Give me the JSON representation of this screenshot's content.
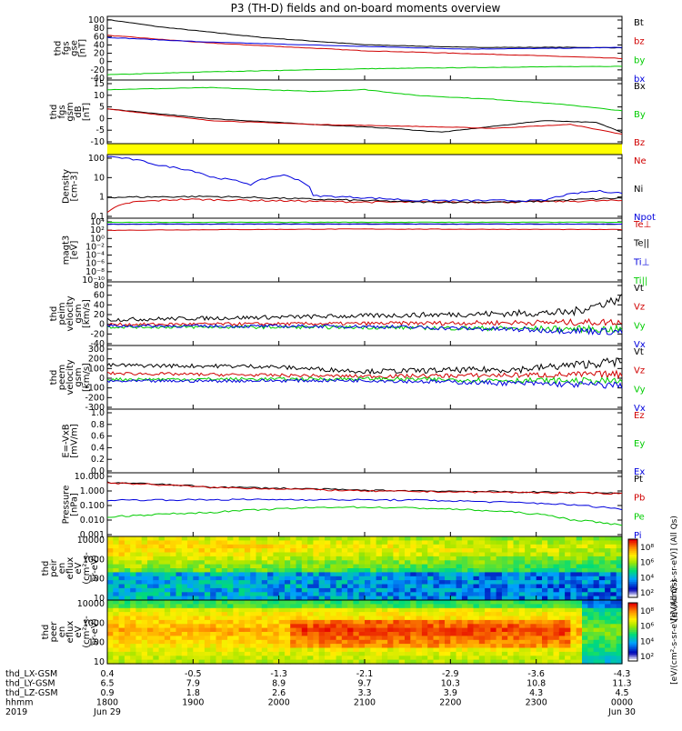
{
  "title": "P3 (TH-D) fields and on-board moments overview",
  "colors": {
    "black": "#000000",
    "red": "#d00000",
    "green": "#00cc00",
    "blue": "#0000dd",
    "yellow": "#ffff00"
  },
  "chart_data": [
    {
      "type": "line",
      "ylabel_lines": [
        "thd",
        "fgs",
        "gse",
        "[nT]"
      ],
      "yticks": [
        "100",
        "80",
        "60",
        "40",
        "20",
        "0",
        "-20",
        "-40"
      ],
      "ylim": [
        -40,
        100
      ],
      "series": [
        {
          "name": "Bt",
          "color": "#000000",
          "anchors": [
            [
              0,
              97
            ],
            [
              0.1,
              80
            ],
            [
              0.3,
              55
            ],
            [
              0.5,
              38
            ],
            [
              0.7,
              32
            ],
            [
              0.9,
              32
            ],
            [
              1,
              31
            ]
          ]
        },
        {
          "name": "bz",
          "color": "#d00000",
          "anchors": [
            [
              0,
              60
            ],
            [
              0.2,
              42
            ],
            [
              0.5,
              24
            ],
            [
              0.8,
              14
            ],
            [
              1,
              6
            ]
          ]
        },
        {
          "name": "by",
          "color": "#00cc00",
          "anchors": [
            [
              0,
              -32
            ],
            [
              0.2,
              -25
            ],
            [
              0.5,
              -18
            ],
            [
              0.8,
              -14
            ],
            [
              1,
              -12
            ]
          ]
        },
        {
          "name": "bx",
          "color": "#0000dd",
          "anchors": [
            [
              0,
              55
            ],
            [
              0.2,
              44
            ],
            [
              0.5,
              34
            ],
            [
              0.7,
              28
            ],
            [
              0.9,
              30
            ],
            [
              1,
              32
            ]
          ]
        }
      ]
    },
    {
      "type": "line",
      "ylabel_lines": [
        "thd",
        "fgs",
        "gsm",
        "dB",
        "[nT]"
      ],
      "yticks": [
        "15",
        "10",
        "5",
        "0",
        "-5",
        "-10"
      ],
      "ylim": [
        -14,
        17
      ],
      "series": [
        {
          "name": "Bx",
          "color": "#000000",
          "anchors": [
            [
              0,
              3
            ],
            [
              0.2,
              -2
            ],
            [
              0.4,
              -5
            ],
            [
              0.55,
              -7
            ],
            [
              0.65,
              -9
            ],
            [
              0.75,
              -6
            ],
            [
              0.85,
              -3
            ],
            [
              0.95,
              -4
            ],
            [
              1,
              -9
            ]
          ]
        },
        {
          "name": "By",
          "color": "#00cc00",
          "anchors": [
            [
              0,
              13
            ],
            [
              0.2,
              14
            ],
            [
              0.4,
              12
            ],
            [
              0.5,
              13
            ],
            [
              0.6,
              10
            ],
            [
              0.75,
              8
            ],
            [
              0.9,
              5
            ],
            [
              1,
              2
            ]
          ]
        },
        {
          "name": "Bz",
          "color": "#d00000",
          "anchors": [
            [
              0,
              3
            ],
            [
              0.2,
              -3
            ],
            [
              0.4,
              -5
            ],
            [
              0.6,
              -6
            ],
            [
              0.75,
              -7
            ],
            [
              0.9,
              -5
            ],
            [
              1,
              -10
            ]
          ]
        }
      ]
    },
    {
      "type": "line",
      "log": true,
      "ylabel_lines": [
        "Density",
        "[cm-3]"
      ],
      "yticks": [
        "100",
        "10",
        "1",
        "0.1"
      ],
      "ylim": [
        0.05,
        300
      ],
      "series": [
        {
          "name": "Ne",
          "color": "#d00000",
          "anchors": [
            [
              0,
              0.08
            ],
            [
              0.05,
              0.4
            ],
            [
              0.15,
              0.6
            ],
            [
              0.3,
              0.5
            ],
            [
              0.5,
              0.4
            ],
            [
              0.8,
              0.4
            ],
            [
              1,
              0.5
            ]
          ]
        },
        {
          "name": "Ni",
          "color": "#000000",
          "anchors": [
            [
              0,
              0.8
            ],
            [
              0.2,
              0.9
            ],
            [
              0.4,
              0.6
            ],
            [
              0.6,
              0.4
            ],
            [
              0.8,
              0.4
            ],
            [
              1,
              0.7
            ]
          ]
        },
        {
          "name": "Npot",
          "color": "#0000dd",
          "anchors": [
            [
              0,
              300
            ],
            [
              0.1,
              80
            ],
            [
              0.2,
              15
            ],
            [
              0.28,
              5
            ],
            [
              0.34,
              20
            ],
            [
              0.4,
              1
            ],
            [
              0.6,
              0.5
            ],
            [
              0.85,
              0.5
            ],
            [
              0.95,
              2
            ],
            [
              1,
              1.5
            ]
          ]
        }
      ]
    },
    {
      "type": "line",
      "log": true,
      "ylabel_lines": [
        "magt3",
        "[eV]"
      ],
      "yticks": [
        "10⁴",
        "10²",
        "10⁰",
        "10⁻²",
        "10⁻⁴",
        "10⁻⁶",
        "10⁻⁸",
        "10⁻¹⁰"
      ],
      "ylim": [
        1e-10,
        30000
      ],
      "series": [
        {
          "name": "Te⊥",
          "color": "#d00000",
          "anchors": [
            [
              0,
              100
            ],
            [
              0.5,
              200
            ],
            [
              1,
              150
            ]
          ]
        },
        {
          "name": "Te||",
          "color": "#000000",
          "anchors": [
            [
              0,
              3000
            ],
            [
              0.5,
              3500
            ],
            [
              1,
              3000
            ]
          ]
        },
        {
          "name": "Ti⊥",
          "color": "#0000dd",
          "anchors": [
            [
              0,
              3000
            ],
            [
              0.5,
              3000
            ],
            [
              1,
              3200
            ]
          ]
        },
        {
          "name": "Ti||",
          "color": "#00cc00",
          "anchors": [
            [
              0,
              8000
            ],
            [
              0.5,
              9000
            ],
            [
              1,
              9000
            ]
          ]
        }
      ]
    },
    {
      "type": "line",
      "noisy": true,
      "ylabel_lines": [
        "thd",
        "peim",
        "velocity",
        "gsm",
        "[km/s]"
      ],
      "yticks": [
        "80",
        "60",
        "40",
        "20",
        "0",
        "-20",
        "-40"
      ],
      "ylim": [
        -40,
        85
      ],
      "series": [
        {
          "name": "Vt",
          "color": "#000000",
          "anchors": [
            [
              0,
              10
            ],
            [
              0.5,
              18
            ],
            [
              0.9,
              25
            ],
            [
              1,
              55
            ]
          ]
        },
        {
          "name": "Vz",
          "color": "#d00000",
          "anchors": [
            [
              0,
              0
            ],
            [
              0.5,
              2
            ],
            [
              1,
              5
            ]
          ]
        },
        {
          "name": "Vy",
          "color": "#00cc00",
          "anchors": [
            [
              0,
              -5
            ],
            [
              0.5,
              -6
            ],
            [
              1,
              -10
            ]
          ]
        },
        {
          "name": "Vx",
          "color": "#0000dd",
          "anchors": [
            [
              0,
              -3
            ],
            [
              0.5,
              -4
            ],
            [
              1,
              -15
            ]
          ]
        }
      ]
    },
    {
      "type": "line",
      "noisy": true,
      "ylabel_lines": [
        "thd",
        "peem",
        "velocity",
        "gsm",
        "[km/s]"
      ],
      "yticks": [
        "300",
        "200",
        "100",
        "0",
        "-100",
        "-200",
        "-300"
      ],
      "ylim": [
        -300,
        300
      ],
      "series": [
        {
          "name": "Vt",
          "color": "#000000",
          "anchors": [
            [
              0,
              120
            ],
            [
              0.3,
              110
            ],
            [
              0.5,
              60
            ],
            [
              0.8,
              80
            ],
            [
              1,
              160
            ]
          ]
        },
        {
          "name": "Vz",
          "color": "#d00000",
          "anchors": [
            [
              0,
              40
            ],
            [
              0.5,
              10
            ],
            [
              1,
              30
            ]
          ]
        },
        {
          "name": "Vy",
          "color": "#00cc00",
          "anchors": [
            [
              0,
              -20
            ],
            [
              0.5,
              -15
            ],
            [
              1,
              -40
            ]
          ]
        },
        {
          "name": "Vx",
          "color": "#0000dd",
          "anchors": [
            [
              0,
              -40
            ],
            [
              0.5,
              -30
            ],
            [
              1,
              -80
            ]
          ]
        }
      ]
    },
    {
      "type": "line",
      "ylabel_lines": [
        "E=-VxB",
        "[mV/m]"
      ],
      "yticks": [
        "1.0",
        "0.8",
        "0.6",
        "0.4",
        "0.2",
        "0.0"
      ],
      "ylim": [
        0,
        1
      ],
      "series": [
        {
          "name": "Ez",
          "color": "#d00000",
          "anchors": []
        },
        {
          "name": "Ey",
          "color": "#00cc00",
          "anchors": []
        },
        {
          "name": "Ex",
          "color": "#0000dd",
          "anchors": []
        }
      ]
    },
    {
      "type": "line",
      "log": true,
      "ylabel_lines": [
        "Pressure",
        "[nPa]"
      ],
      "yticks": [
        "10.000",
        "1.000",
        "0.100",
        "0.010",
        "0.001"
      ],
      "ylim": [
        0.001,
        10
      ],
      "series": [
        {
          "name": "Pt",
          "color": "#000000",
          "anchors": [
            [
              0,
              3
            ],
            [
              0.2,
              1.5
            ],
            [
              0.5,
              0.9
            ],
            [
              0.8,
              0.7
            ],
            [
              1,
              0.6
            ]
          ]
        },
        {
          "name": "Pb",
          "color": "#d00000",
          "anchors": [
            [
              0,
              2.8
            ],
            [
              0.2,
              1.4
            ],
            [
              0.5,
              0.8
            ],
            [
              0.8,
              0.65
            ],
            [
              1,
              0.55
            ]
          ]
        },
        {
          "name": "Pe",
          "color": "#00cc00",
          "anchors": [
            [
              0,
              0.015
            ],
            [
              0.2,
              0.03
            ],
            [
              0.45,
              0.07
            ],
            [
              0.6,
              0.06
            ],
            [
              0.8,
              0.03
            ],
            [
              0.9,
              0.01
            ],
            [
              1,
              0.004
            ]
          ]
        },
        {
          "name": "Pi",
          "color": "#0000dd",
          "anchors": [
            [
              0,
              0.2
            ],
            [
              0.3,
              0.22
            ],
            [
              0.6,
              0.2
            ],
            [
              0.85,
              0.12
            ],
            [
              1,
              0.05
            ]
          ]
        }
      ]
    },
    {
      "type": "heatmap",
      "ylabel_lines": [
        "thd",
        "peir",
        "en",
        "eflux",
        "eV",
        "(cm²-s-",
        "sr-eV)"
      ],
      "yticks": [
        "10000",
        "1000",
        "100",
        "10"
      ],
      "colorbar_label": "[eV/(cm²-s-sr-eV)] (All Qs)",
      "colorbar_ticks": [
        "10⁸",
        "10⁶",
        "10⁴",
        "10²"
      ]
    },
    {
      "type": "heatmap",
      "ylabel_lines": [
        "thd",
        "peer",
        "en",
        "eflux",
        "eV",
        "(cm²-s-",
        "sr-eV)"
      ],
      "yticks": [
        "10000",
        "1000",
        "100",
        "10"
      ],
      "colorbar_label": "[eV/(cm²-s-sr-eV)] (All Qs)",
      "colorbar_ticks": [
        "10⁸",
        "10⁶",
        "10⁴",
        "10²"
      ]
    }
  ],
  "xaxis": {
    "rows": [
      {
        "label": "thd_LX-GSM",
        "values": [
          "0.4",
          "-0.5",
          "-1.3",
          "-2.1",
          "-2.9",
          "-3.6",
          "-4.3"
        ]
      },
      {
        "label": "thd_LY-GSM",
        "values": [
          "6.5",
          "7.9",
          "8.9",
          "9.7",
          "10.3",
          "10.8",
          "11.3"
        ]
      },
      {
        "label": "thd_LZ-GSM",
        "values": [
          "0.9",
          "1.8",
          "2.6",
          "3.3",
          "3.9",
          "4.3",
          "4.5"
        ]
      },
      {
        "label": "hhmm",
        "values": [
          "1800",
          "1900",
          "2000",
          "2100",
          "2200",
          "2300",
          "0000"
        ]
      },
      {
        "label": "2019",
        "values": [
          "Jun 29",
          "",
          "",
          "",
          "",
          "",
          "Jun 30"
        ]
      }
    ]
  }
}
